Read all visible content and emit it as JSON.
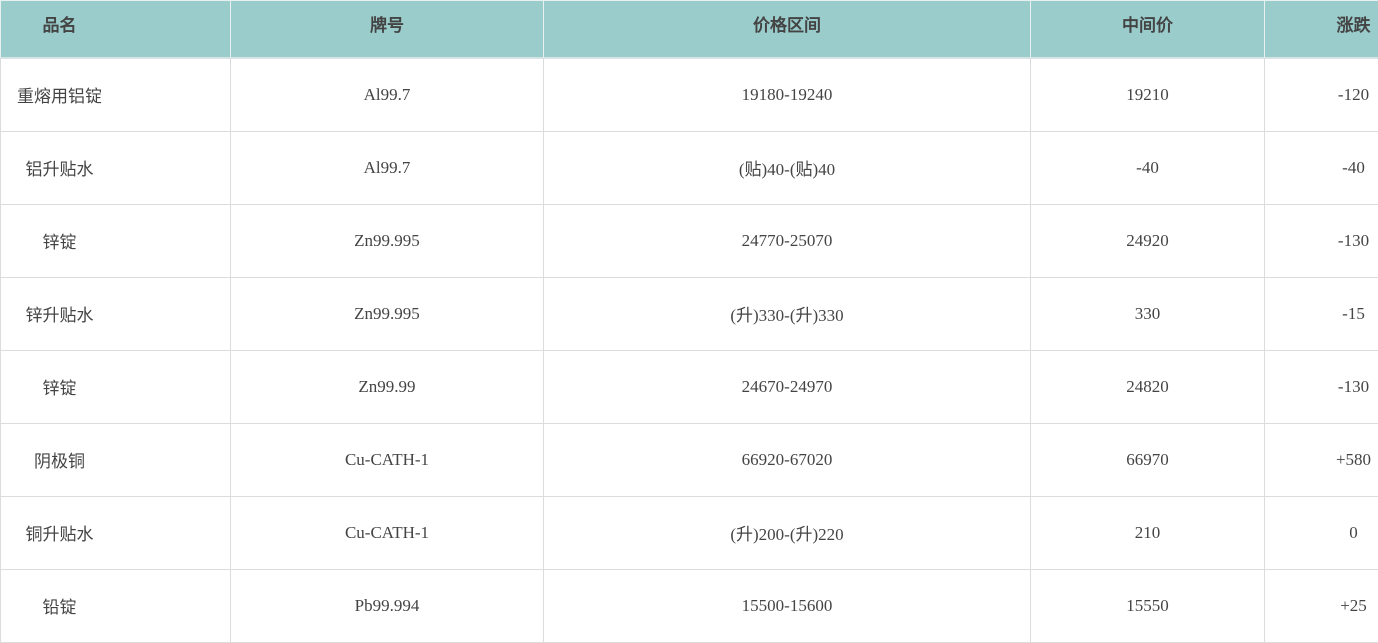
{
  "table": {
    "headers": [
      "品名",
      "牌号",
      "价格区间",
      "中间价",
      "涨跌"
    ],
    "rows": [
      [
        "重熔用铝锭",
        "Al99.7",
        "19180-19240",
        "19210",
        "-120"
      ],
      [
        "铝升贴水",
        "Al99.7",
        "(贴)40-(贴)40",
        "-40",
        "-40"
      ],
      [
        "锌锭",
        "Zn99.995",
        "24770-25070",
        "24920",
        "-130"
      ],
      [
        "锌升贴水",
        "Zn99.995",
        "(升)330-(升)330",
        "330",
        "-15"
      ],
      [
        "锌锭",
        "Zn99.99",
        "24670-24970",
        "24820",
        "-130"
      ],
      [
        "阴极铜",
        "Cu-CATH-1",
        "66920-67020",
        "66970",
        "+580"
      ],
      [
        "铜升贴水",
        "Cu-CATH-1",
        "(升)200-(升)220",
        "210",
        "0"
      ],
      [
        "铅锭",
        "Pb99.994",
        "15500-15600",
        "15550",
        "+25"
      ]
    ]
  },
  "colors": {
    "header_bg": "#9acccc",
    "border": "#dcdcdc",
    "text": "#444444"
  }
}
